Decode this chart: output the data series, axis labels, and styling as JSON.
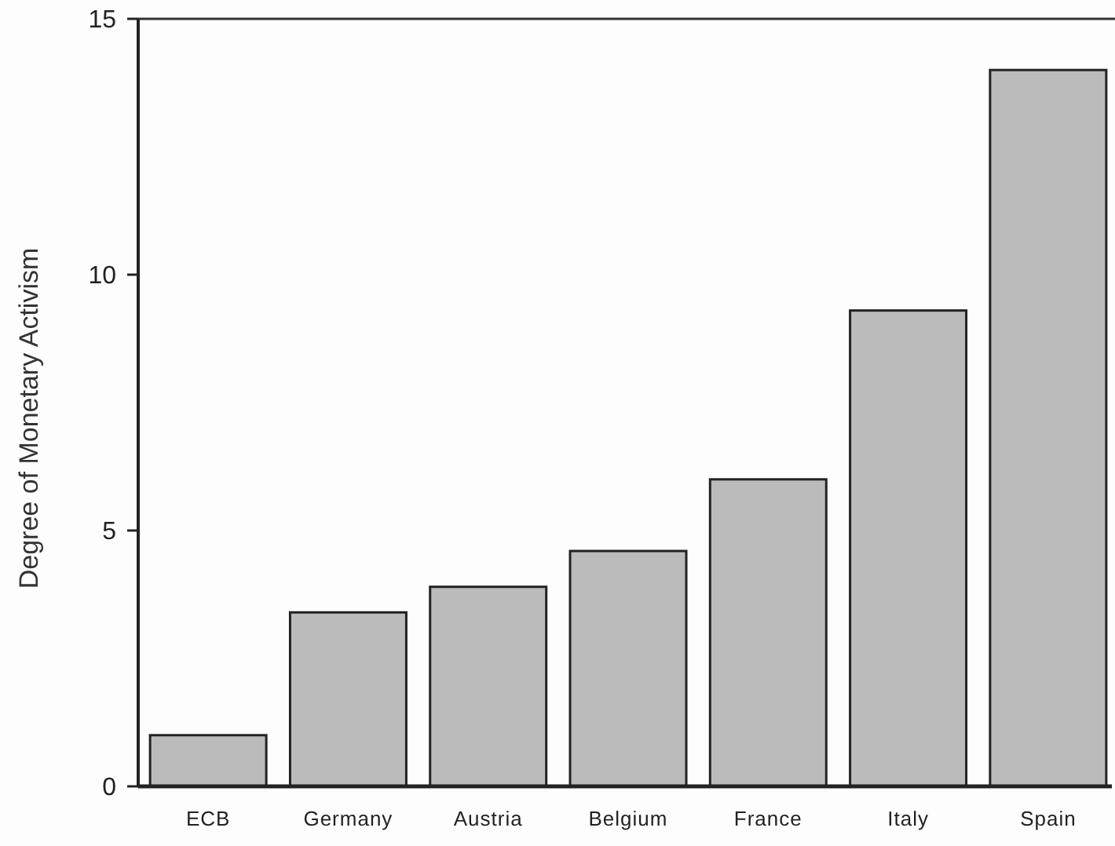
{
  "chart_data": {
    "type": "bar",
    "ylabel": "Degree of Monetary Activism",
    "categories": [
      "ECB",
      "Germany",
      "Austria",
      "Belgium",
      "France",
      "Italy",
      "Spain"
    ],
    "values": [
      1.0,
      3.4,
      3.9,
      4.6,
      6.0,
      9.3,
      14.0
    ],
    "color": "#bbbbbb",
    "ylim": [
      0,
      15
    ],
    "yticks": [
      0,
      5,
      10,
      15
    ],
    "grid": false
  }
}
